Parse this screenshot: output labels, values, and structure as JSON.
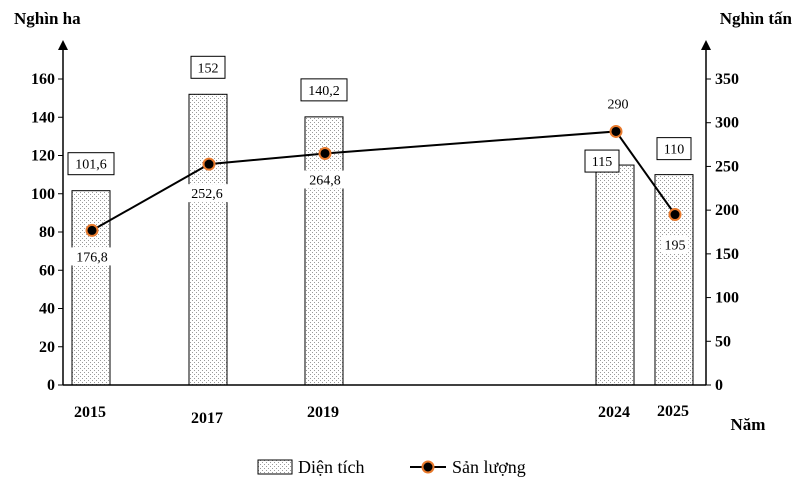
{
  "chart_data": {
    "type": "bar-line",
    "categories": [
      "2015",
      "2017",
      "2019",
      "2024",
      "2025"
    ],
    "series": [
      {
        "name": "Diện tích",
        "type": "bar",
        "axis": "left",
        "values": [
          101.6,
          152,
          140.2,
          115,
          110
        ],
        "labels": [
          "101,6",
          "152",
          "140,2",
          "115",
          "110"
        ]
      },
      {
        "name": "Sản lượng",
        "type": "line",
        "axis": "right",
        "values": [
          176.8,
          252.6,
          264.8,
          290,
          195
        ],
        "labels": [
          "176,8",
          "252,6",
          "264,8",
          "290",
          "195"
        ]
      }
    ],
    "y_left": {
      "label": "Nghìn ha",
      "min": 0,
      "max": 160,
      "ticks": [
        0,
        20,
        40,
        60,
        80,
        100,
        120,
        140,
        160
      ]
    },
    "y_right": {
      "label": "Nghìn tấn",
      "min": 0,
      "max": 350,
      "ticks": [
        0,
        50,
        100,
        150,
        200,
        250,
        300,
        350
      ]
    },
    "x_label": "Năm",
    "legend": {
      "position": "bottom-center",
      "entries": [
        "Diện tích",
        "Sản lượng"
      ]
    },
    "colors": {
      "bar_fill": "#e6e6e6",
      "bar_stroke": "#000000",
      "line": "#000000",
      "marker_fill": "#000000",
      "marker_stroke": "#e87a2d"
    }
  }
}
